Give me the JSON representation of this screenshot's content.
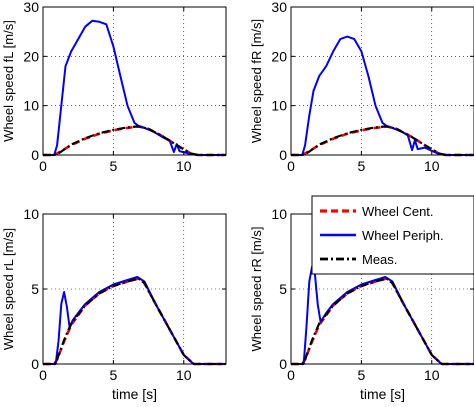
{
  "chart_data": [
    {
      "type": "line",
      "ylabel": "Wheel speed fL [m/s]",
      "xlabel": "",
      "xlim": [
        0,
        13
      ],
      "ylim": [
        0,
        30
      ],
      "xticks": [
        0,
        5,
        10
      ],
      "yticks": [
        0,
        10,
        20,
        30
      ],
      "xtick_labels": [
        "0",
        "5",
        "10"
      ],
      "ytick_labels": [
        "0",
        "10",
        "20",
        "30"
      ],
      "grid": true,
      "series": [
        {
          "name": "Wheel Cent.",
          "color": "#ff0000",
          "style": "dashed",
          "x": [
            0,
            0.7,
            1,
            2,
            3,
            4,
            5,
            6,
            6.8,
            7.5,
            8.5,
            9.5,
            10.5,
            11,
            13
          ],
          "y": [
            0,
            0,
            0.3,
            2,
            3.3,
            4.3,
            5.0,
            5.5,
            5.8,
            5.3,
            3.8,
            2.0,
            0.3,
            0,
            0
          ]
        },
        {
          "name": "Wheel Periph.",
          "color": "#0000ff",
          "style": "solid",
          "x": [
            0,
            0.8,
            1.0,
            1.3,
            1.6,
            2.0,
            2.5,
            3.0,
            3.5,
            4.0,
            4.5,
            5.0,
            5.5,
            6.0,
            6.5,
            6.8,
            7.2,
            7.8,
            8.5,
            9.0,
            9.3,
            9.5,
            9.7,
            10.5,
            11,
            13
          ],
          "y": [
            0,
            0,
            2,
            10,
            18,
            21,
            23.5,
            26,
            27.2,
            27,
            26.5,
            22,
            16,
            10,
            6.5,
            5.9,
            5.5,
            4.8,
            3.6,
            2.9,
            0.6,
            2.2,
            0.8,
            0.2,
            0,
            0
          ]
        },
        {
          "name": "Meas.",
          "color": "#000000",
          "style": "dashdot",
          "x": [
            0,
            0.8,
            1.1,
            2,
            3,
            4,
            5,
            6,
            6.8,
            7.5,
            8.5,
            9.5,
            10.5,
            11,
            13
          ],
          "y": [
            0,
            0,
            0.3,
            2.1,
            3.4,
            4.4,
            5.1,
            5.6,
            5.8,
            5.3,
            3.8,
            2.0,
            0.3,
            0,
            0
          ]
        }
      ]
    },
    {
      "type": "line",
      "ylabel": "Wheel speed fR [m/s]",
      "xlabel": "",
      "xlim": [
        0,
        13
      ],
      "ylim": [
        0,
        30
      ],
      "xticks": [
        0,
        5,
        10
      ],
      "yticks": [
        0,
        10,
        20,
        30
      ],
      "xtick_labels": [
        "0",
        "5",
        "10"
      ],
      "ytick_labels": [
        "0",
        "10",
        "20",
        "30"
      ],
      "grid": true,
      "series": [
        {
          "name": "Wheel Cent.",
          "color": "#ff0000",
          "style": "dashed",
          "x": [
            0,
            0.7,
            1,
            2,
            3,
            4,
            5,
            6,
            6.8,
            7.5,
            8.5,
            9.5,
            10.5,
            11,
            13
          ],
          "y": [
            0,
            0,
            0.3,
            2,
            3.3,
            4.3,
            5.0,
            5.5,
            5.8,
            5.3,
            3.8,
            2.0,
            0.3,
            0,
            0
          ]
        },
        {
          "name": "Wheel Periph.",
          "color": "#0000ff",
          "style": "solid",
          "x": [
            0,
            0.8,
            1.0,
            1.3,
            1.6,
            2.0,
            2.5,
            3.0,
            3.5,
            4.0,
            4.5,
            5.0,
            5.5,
            6.0,
            6.5,
            6.8,
            7.2,
            7.8,
            8.3,
            8.6,
            8.8,
            9.0,
            9.5,
            10.5,
            11,
            13
          ],
          "y": [
            0,
            0,
            2,
            8,
            13,
            16,
            18,
            21,
            23.5,
            24,
            23.5,
            21,
            16,
            10,
            6.5,
            5.9,
            5.5,
            4.8,
            4.0,
            1.0,
            3.0,
            1.2,
            1.5,
            0.2,
            0,
            0
          ]
        },
        {
          "name": "Meas.",
          "color": "#000000",
          "style": "dashdot",
          "x": [
            0,
            0.8,
            1.1,
            2,
            3,
            4,
            5,
            6,
            6.8,
            7.5,
            8.5,
            9.5,
            10.5,
            11,
            13
          ],
          "y": [
            0,
            0,
            0.3,
            2.1,
            3.4,
            4.4,
            5.1,
            5.6,
            5.8,
            5.3,
            3.8,
            2.0,
            0.3,
            0,
            0
          ]
        }
      ]
    },
    {
      "type": "line",
      "ylabel": "Wheel speed rL [m/s]",
      "xlabel": "time [s]",
      "xlim": [
        0,
        13
      ],
      "ylim": [
        0,
        10
      ],
      "xticks": [
        0,
        5,
        10
      ],
      "yticks": [
        0,
        5,
        10
      ],
      "xtick_labels": [
        "0",
        "5",
        "10"
      ],
      "ytick_labels": [
        "0",
        "5",
        "10"
      ],
      "grid": true,
      "series": [
        {
          "name": "Wheel Cent.",
          "color": "#ff0000",
          "style": "dashed",
          "x": [
            0,
            0.8,
            1.0,
            1.5,
            2,
            3,
            4,
            5,
            6,
            6.8,
            7.2,
            8,
            9,
            10,
            10.7,
            13
          ],
          "y": [
            0,
            0,
            0.3,
            1.5,
            2.6,
            3.9,
            4.7,
            5.2,
            5.5,
            5.7,
            5.4,
            4.0,
            2.3,
            0.6,
            0,
            0
          ]
        },
        {
          "name": "Wheel Periph.",
          "color": "#0000ff",
          "style": "solid",
          "x": [
            0,
            0.9,
            1.1,
            1.3,
            1.5,
            1.7,
            1.9,
            2.1,
            2.5,
            3,
            4,
            5,
            6,
            6.7,
            7.2,
            8,
            9,
            10,
            10.7,
            13
          ],
          "y": [
            0,
            0,
            1.5,
            4.0,
            4.8,
            3.8,
            2.4,
            2.9,
            3.4,
            4.0,
            4.8,
            5.3,
            5.6,
            5.8,
            5.5,
            4.0,
            2.3,
            0.6,
            0,
            0
          ]
        },
        {
          "name": "Meas.",
          "color": "#000000",
          "style": "dashdot",
          "x": [
            0,
            0.8,
            1.0,
            1.5,
            2,
            3,
            4,
            5,
            6,
            6.8,
            7.2,
            8,
            9,
            10,
            10.7,
            13
          ],
          "y": [
            0,
            0,
            0.3,
            1.6,
            2.7,
            3.9,
            4.7,
            5.2,
            5.5,
            5.7,
            5.4,
            4.0,
            2.3,
            0.6,
            0,
            0
          ]
        }
      ]
    },
    {
      "type": "line",
      "ylabel": "Wheel speed rR [m/s]",
      "xlabel": "time [s]",
      "xlim": [
        0,
        13
      ],
      "ylim": [
        0,
        10
      ],
      "xticks": [
        0,
        5,
        10
      ],
      "yticks": [
        0,
        5,
        10
      ],
      "xtick_labels": [
        "0",
        "5",
        "10"
      ],
      "ytick_labels": [
        "0",
        "5",
        "10"
      ],
      "grid": true,
      "legend": {
        "placement": "top-right",
        "entries": [
          "Wheel Cent.",
          "Wheel Periph.",
          "Meas."
        ]
      },
      "series": [
        {
          "name": "Wheel Cent.",
          "color": "#ff0000",
          "style": "dashed",
          "x": [
            0,
            0.8,
            1.0,
            1.5,
            2,
            3,
            4,
            5,
            6,
            6.8,
            7.2,
            8,
            9,
            10,
            10.7,
            13
          ],
          "y": [
            0,
            0,
            0.3,
            1.5,
            2.6,
            3.9,
            4.7,
            5.2,
            5.5,
            5.7,
            5.4,
            4.0,
            2.3,
            0.6,
            0,
            0
          ]
        },
        {
          "name": "Wheel Periph.",
          "color": "#0000ff",
          "style": "solid",
          "x": [
            0,
            0.9,
            1.1,
            1.3,
            1.5,
            1.7,
            1.9,
            2.1,
            2.5,
            3,
            4,
            5,
            6,
            6.7,
            7.2,
            8,
            9,
            10,
            10.7,
            13
          ],
          "y": [
            0,
            0,
            2.5,
            5.5,
            6.5,
            6.0,
            4.0,
            2.8,
            3.4,
            4.0,
            4.8,
            5.3,
            5.6,
            5.8,
            5.5,
            4.0,
            2.3,
            0.6,
            0,
            0
          ]
        },
        {
          "name": "Meas.",
          "color": "#000000",
          "style": "dashdot",
          "x": [
            0,
            0.8,
            1.0,
            1.5,
            2,
            3,
            4,
            5,
            6,
            6.8,
            7.2,
            8,
            9,
            10,
            10.7,
            13
          ],
          "y": [
            0,
            0,
            0.3,
            1.6,
            2.7,
            3.9,
            4.7,
            5.2,
            5.5,
            5.7,
            5.4,
            4.0,
            2.3,
            0.6,
            0,
            0
          ]
        }
      ]
    }
  ]
}
